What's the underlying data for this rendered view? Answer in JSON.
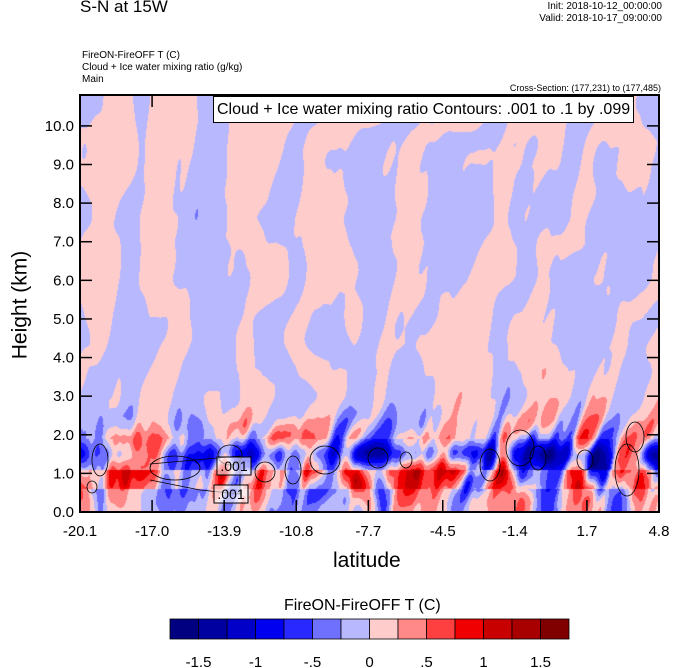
{
  "header": {
    "title": "S-N at 15W",
    "init": "Init: 2018-10-12_00:00:00",
    "valid": "Valid: 2018-10-17_09:00:00",
    "field_lines": [
      "FireON-FireOFF T   (C)",
      "Cloud + Ice water mixing ratio   (g/kg)",
      "Main"
    ],
    "cross_section": "Cross-Section: (177,231) to (177,485)"
  },
  "chart_data": {
    "type": "heatmap",
    "title": "",
    "contour_info": "Cloud + Ice water mixing ratio Contours: .001 to .1 by .099",
    "xlabel": "latitude",
    "ylabel": "Height (km)",
    "xlim": [
      -20.1,
      4.8
    ],
    "ylim": [
      0.0,
      10.8
    ],
    "x_ticks": [
      "-20.1",
      "-17.0",
      "-13.9",
      "-10.8",
      "-7.7",
      "-4.5",
      "-1.4",
      "1.7",
      "4.8"
    ],
    "x_tick_values": [
      -20.1,
      -17.0,
      -13.9,
      -10.8,
      -7.7,
      -4.5,
      -1.4,
      1.7,
      4.8
    ],
    "y_ticks": [
      "0.0",
      "1.0",
      "2.0",
      "3.0",
      "4.0",
      "5.0",
      "6.0",
      "7.0",
      "8.0",
      "9.0",
      "10.0"
    ],
    "y_tick_values": [
      0,
      1,
      2,
      3,
      4,
      5,
      6,
      7,
      8,
      9,
      10
    ],
    "contour_labels": [
      ".001",
      ".001"
    ],
    "colorbar": {
      "title": "FireON-FireOFF T  (C)",
      "levels": [
        -1.5,
        -1.25,
        -1.0,
        -0.75,
        -0.5,
        -0.25,
        0,
        0.25,
        0.5,
        0.75,
        1.0,
        1.25,
        1.5
      ],
      "labels": [
        "-1.5",
        "-1",
        "-.5",
        "0",
        ".5",
        "1",
        "1.5"
      ],
      "label_values": [
        -1.5,
        -1.0,
        -0.5,
        0,
        0.5,
        1.0,
        1.5
      ],
      "colors": [
        "#000080",
        "#0000a0",
        "#0000c8",
        "#0000f0",
        "#2828ff",
        "#7070ff",
        "#b8b8ff",
        "#ffcccc",
        "#ff8888",
        "#ff4040",
        "#f00000",
        "#c80000",
        "#a80000",
        "#800000"
      ]
    },
    "grid": false
  }
}
